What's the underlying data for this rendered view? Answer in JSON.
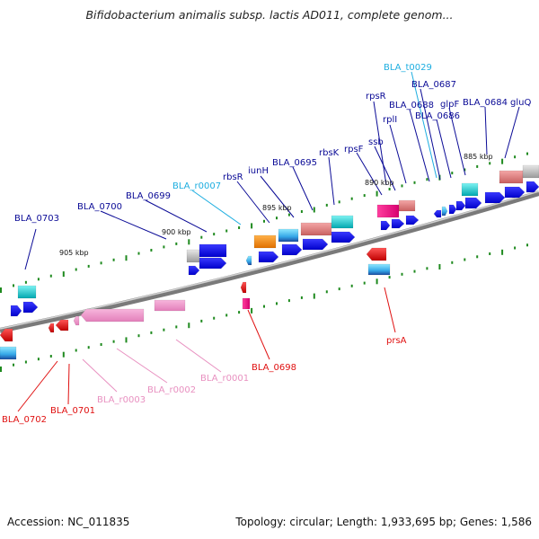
{
  "title": "Bifidobacterium animalis subsp. lactis AD011, complete genom...",
  "footer": {
    "accession": "Accession: NC_011835",
    "topology": "Topology: circular; Length: 1,933,695 bp; Genes: 1,586"
  },
  "scale": {
    "unit": "kbp",
    "ticks": [
      "905 kbp",
      "900 kbp",
      "895 kbp",
      "890 kbp",
      "885 kbp"
    ]
  },
  "colors": {
    "forward_label": "#0a0a96",
    "rna_label": "#1eaee0",
    "reverse_label": "#e01010",
    "reverse_rna_label": "#e890c0",
    "pseudo_rna_label": "#e890c0",
    "track_dots": "#1f8a1f"
  },
  "labels": {
    "forward": [
      "BLA_0703",
      "BLA_0700",
      "BLA_0699",
      "rbsR",
      "iunH",
      "BLA_0695",
      "rbsK",
      "rpsF",
      "ssb",
      "rpsR",
      "rplI",
      "BLA_0688",
      "BLA_0687",
      "BLA_0686",
      "glpF",
      "BLA_0684",
      "gluQ"
    ],
    "forward_rna": [
      "BLA_r0007",
      "BLA_t0029"
    ],
    "reverse": [
      "BLA_0702",
      "BLA_0701",
      "BLA_0698",
      "prsA"
    ],
    "reverse_rna": [
      "BLA_r0003",
      "BLA_r0002",
      "BLA_r0001"
    ]
  }
}
